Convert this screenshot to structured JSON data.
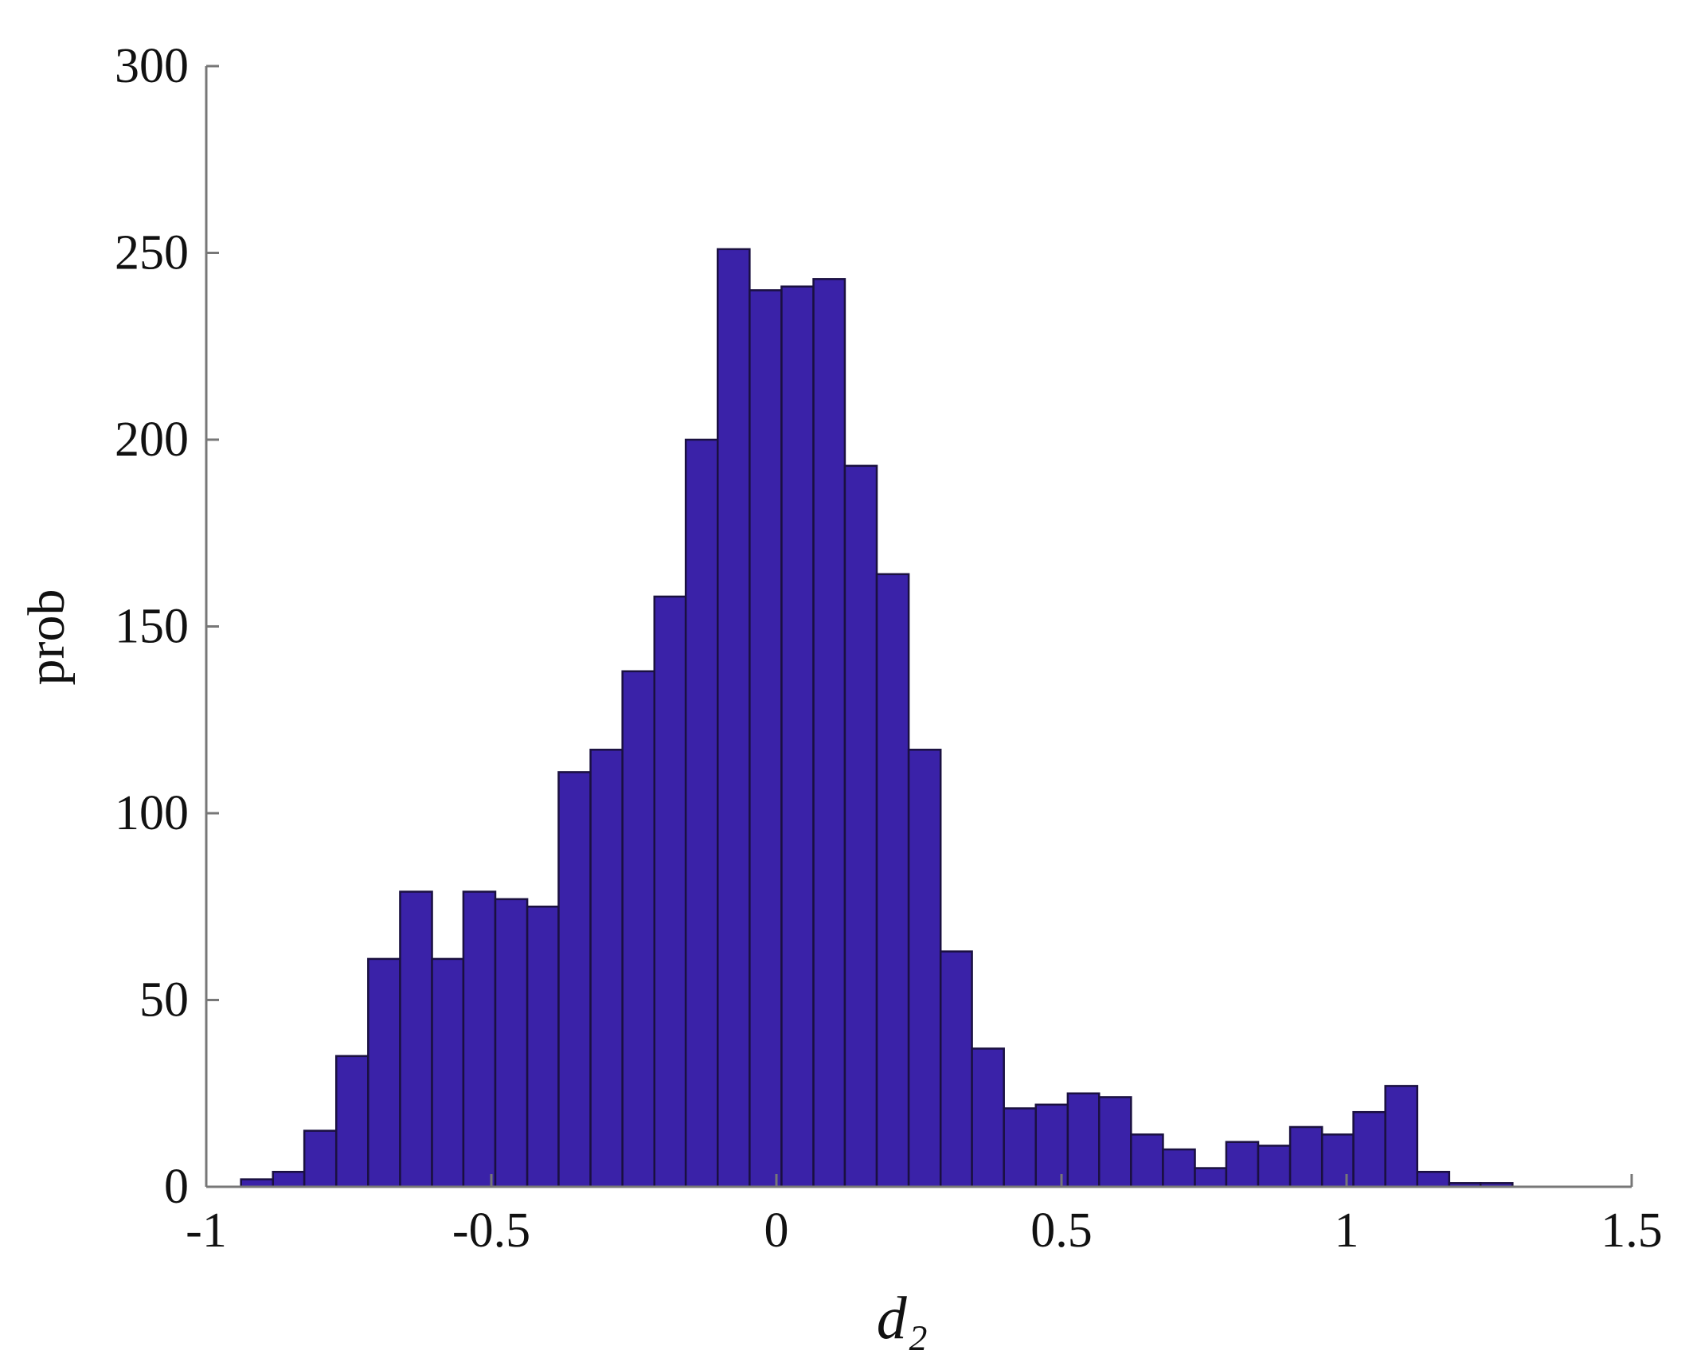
{
  "chart_data": {
    "type": "histogram",
    "xlabel": "d₂",
    "ylabel": "prob",
    "bins": [
      -0.939,
      -0.883,
      -0.828,
      -0.772,
      -0.716,
      -0.66,
      -0.604,
      -0.549,
      -0.493,
      -0.437,
      -0.382,
      -0.326,
      -0.27,
      -0.214,
      -0.159,
      -0.103,
      -0.047,
      0.009,
      0.065,
      0.12,
      0.176,
      0.232,
      0.288,
      0.343,
      0.399,
      0.455,
      0.511,
      0.566,
      0.622,
      0.678,
      0.734,
      0.789,
      0.845,
      0.901,
      0.957,
      1.012,
      1.068,
      1.124,
      1.18,
      1.235,
      1.291
    ],
    "values": [
      2,
      4,
      15,
      35,
      61,
      79,
      61,
      79,
      77,
      75,
      111,
      117,
      138,
      158,
      200,
      251,
      240,
      241,
      243,
      193,
      164,
      117,
      63,
      37,
      21,
      22,
      25,
      24,
      14,
      10,
      5,
      12,
      11,
      16,
      14,
      20,
      27,
      4,
      1,
      1
    ],
    "color": "#3a22a8",
    "xlim": [
      -1,
      1.5
    ],
    "xticks": [
      -1,
      -0.5,
      0,
      0.5,
      1,
      1.5
    ],
    "ylim": [
      0,
      300
    ],
    "yticks": [
      0,
      50,
      100,
      150,
      200,
      250,
      300
    ]
  }
}
